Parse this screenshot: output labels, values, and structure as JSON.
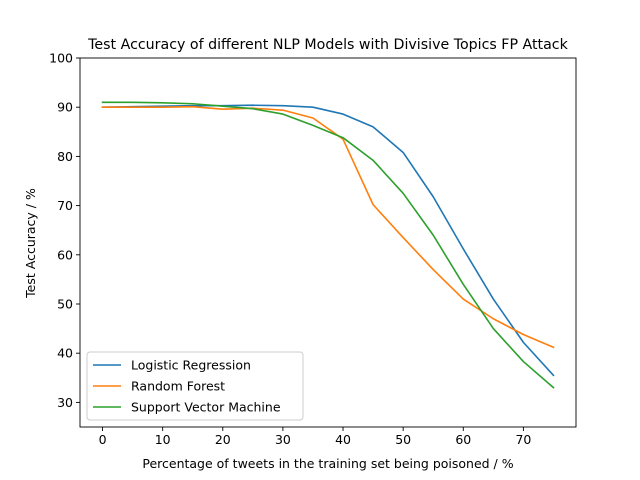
{
  "chart_data": {
    "type": "line",
    "title": "Test Accuracy of different NLP Models with Divisive Topics FP Attack",
    "xlabel": "Percentage of tweets in the training set being poisoned / %",
    "ylabel": "Test Accuracy / %",
    "xlim": [
      -3.75,
      78.75
    ],
    "ylim": [
      25,
      100
    ],
    "xticks": [
      0,
      10,
      20,
      30,
      40,
      50,
      60,
      70
    ],
    "yticks": [
      30,
      40,
      50,
      60,
      70,
      80,
      90,
      100
    ],
    "grid": false,
    "legend_position": "lower-left",
    "x": [
      0,
      5,
      10,
      15,
      20,
      25,
      30,
      35,
      40,
      45,
      50,
      55,
      60,
      65,
      70,
      75
    ],
    "series": [
      {
        "name": "Logistic Regression",
        "color": "#1f77b4",
        "values": [
          90.0,
          90.1,
          90.2,
          90.3,
          90.3,
          90.4,
          90.3,
          90.0,
          88.6,
          86.0,
          80.8,
          71.8,
          61.2,
          51.0,
          42.2,
          35.5
        ]
      },
      {
        "name": "Random Forest",
        "color": "#ff7f0e",
        "values": [
          90.0,
          90.0,
          90.0,
          90.1,
          89.6,
          89.8,
          89.4,
          87.8,
          83.5,
          70.2,
          63.5,
          57.0,
          51.0,
          47.0,
          43.8,
          41.2
        ]
      },
      {
        "name": "Support Vector Machine",
        "color": "#2ca02c",
        "values": [
          91.0,
          91.0,
          90.9,
          90.7,
          90.2,
          89.7,
          88.6,
          86.3,
          83.8,
          79.2,
          72.5,
          64.0,
          54.0,
          45.0,
          38.3,
          33.0
        ]
      }
    ]
  }
}
